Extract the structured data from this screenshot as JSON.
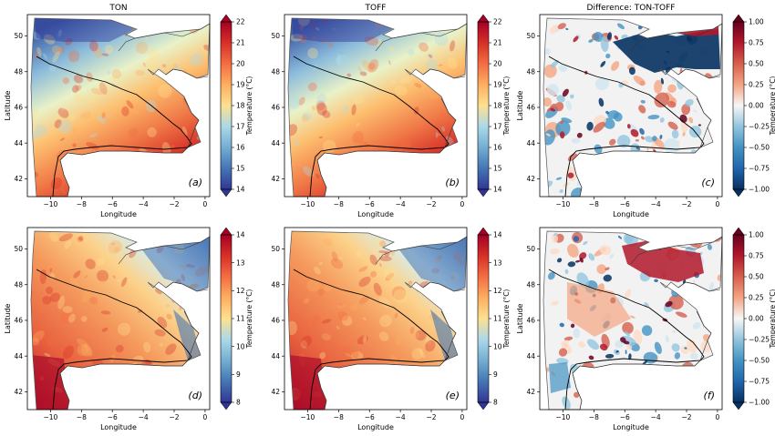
{
  "chart_data": [
    {
      "id": "a",
      "type": "heatmap",
      "title": "TON",
      "label": "(a)",
      "xlabel": "Longitude",
      "ylabel": "Latitude",
      "xlim": [
        -11.5,
        0.3
      ],
      "ylim": [
        41.0,
        51.2
      ],
      "xticks": [
        "-10",
        "-8",
        "-6",
        "-4",
        "-2",
        "0"
      ],
      "yticks": [
        "42",
        "44",
        "46",
        "48",
        "50"
      ],
      "colorbar": {
        "label": "Temperature (°C)",
        "min": 14,
        "max": 22,
        "ticks": [
          "14",
          "15",
          "16",
          "17",
          "18",
          "19",
          "20",
          "21",
          "22"
        ],
        "colormap": "RdYlBu_r",
        "extend": "both"
      },
      "field": "surface temperature"
    },
    {
      "id": "b",
      "type": "heatmap",
      "title": "TOFF",
      "label": "(b)",
      "xlabel": "Longitude",
      "ylabel": "",
      "xlim": [
        -11.5,
        0.3
      ],
      "ylim": [
        41.0,
        51.2
      ],
      "xticks": [
        "-10",
        "-8",
        "-6",
        "-4",
        "-2",
        "0"
      ],
      "yticks": [
        "42",
        "44",
        "46",
        "48",
        "50"
      ],
      "colorbar": {
        "label": "Temperature (°C)",
        "min": 14,
        "max": 22,
        "ticks": [
          "14",
          "15",
          "16",
          "17",
          "18",
          "19",
          "20",
          "21",
          "22"
        ],
        "colormap": "RdYlBu_r",
        "extend": "both"
      },
      "field": "surface temperature"
    },
    {
      "id": "c",
      "type": "heatmap",
      "title": "Difference: TON-TOFF",
      "label": "(c)",
      "xlabel": "Longitude",
      "ylabel": "Latitude",
      "xlim": [
        -11.5,
        0.3
      ],
      "ylim": [
        41.0,
        51.2
      ],
      "xticks": [
        "-10",
        "-8",
        "-6",
        "-4",
        "-2",
        "0"
      ],
      "yticks": [
        "42",
        "44",
        "46",
        "48",
        "50"
      ],
      "colorbar": {
        "label": "Temperature (°C)",
        "min": -1.0,
        "max": 1.0,
        "ticks": [
          "−1.00",
          "−0.75",
          "−0.50",
          "−0.25",
          "0.00",
          "0.25",
          "0.50",
          "0.75",
          "1.00"
        ],
        "colormap": "RdBu_r",
        "extend": "both"
      },
      "field": "temperature difference"
    },
    {
      "id": "d",
      "type": "heatmap",
      "title": "",
      "label": "(d)",
      "xlabel": "Longitude",
      "ylabel": "Latitude",
      "xlim": [
        -11.5,
        0.3
      ],
      "ylim": [
        41.0,
        51.2
      ],
      "xticks": [
        "-10",
        "-8",
        "-6",
        "-4",
        "-2",
        "0"
      ],
      "yticks": [
        "42",
        "44",
        "46",
        "48",
        "50"
      ],
      "colorbar": {
        "label": "Temperature (°C)",
        "min": 8,
        "max": 14,
        "ticks": [
          "8",
          "9",
          "10",
          "11",
          "12",
          "13",
          "14"
        ],
        "colormap": "RdYlBu_r",
        "extend": "both"
      },
      "field": "temperature"
    },
    {
      "id": "e",
      "type": "heatmap",
      "title": "",
      "label": "(e)",
      "xlabel": "Longitude",
      "ylabel": "",
      "xlim": [
        -11.5,
        0.3
      ],
      "ylim": [
        41.0,
        51.2
      ],
      "xticks": [
        "-10",
        "-8",
        "-6",
        "-4",
        "-2",
        "0"
      ],
      "yticks": [
        "42",
        "44",
        "46",
        "48",
        "50"
      ],
      "colorbar": {
        "label": "Temperature (°C)",
        "min": 8,
        "max": 14,
        "ticks": [
          "8",
          "9",
          "10",
          "11",
          "12",
          "13",
          "14"
        ],
        "colormap": "RdYlBu_r",
        "extend": "both"
      },
      "field": "temperature"
    },
    {
      "id": "f",
      "type": "heatmap",
      "title": "",
      "label": "(f)",
      "xlabel": "Longitude",
      "ylabel": "Latitude",
      "xlim": [
        -11.5,
        0.3
      ],
      "ylim": [
        41.0,
        51.2
      ],
      "xticks": [
        "-10",
        "-8",
        "-6",
        "-4",
        "-2",
        "0"
      ],
      "yticks": [
        "42",
        "44",
        "46",
        "48",
        "50"
      ],
      "colorbar": {
        "label": "Temperature (°C)",
        "min": -1.0,
        "max": 1.0,
        "ticks": [
          "−1.00",
          "−0.75",
          "−0.50",
          "−0.25",
          "0.00",
          "0.25",
          "0.50",
          "0.75",
          "1.00"
        ],
        "colormap": "RdBu_r",
        "extend": "both"
      },
      "field": "temperature difference"
    }
  ]
}
